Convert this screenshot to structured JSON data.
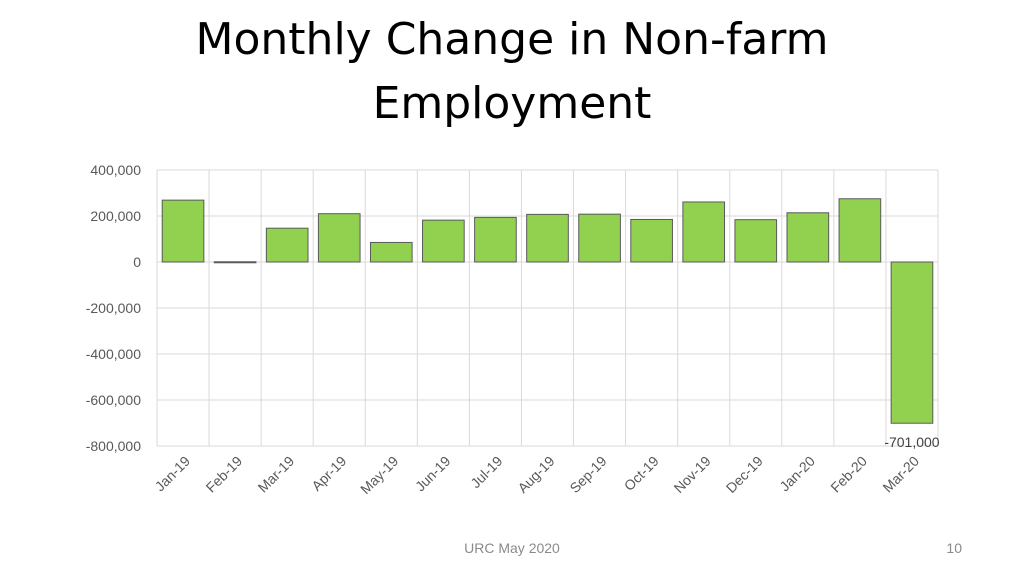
{
  "slide": {
    "title": "Monthly Change in Non-farm Employment",
    "footer_text": "URC May 2020",
    "page_number": "10"
  },
  "chart_data": {
    "type": "bar",
    "title": "",
    "xlabel": "",
    "ylabel": "",
    "categories": [
      "Jan-19",
      "Feb-19",
      "Mar-19",
      "Apr-19",
      "May-19",
      "Jun-19",
      "Jul-19",
      "Aug-19",
      "Sep-19",
      "Oct-19",
      "Nov-19",
      "Dec-19",
      "Jan-20",
      "Feb-20",
      "Mar-20"
    ],
    "values": [
      269000,
      1000,
      147000,
      210000,
      85000,
      182000,
      194000,
      207000,
      208000,
      185000,
      261000,
      184000,
      214000,
      275000,
      -701000
    ],
    "ylim": [
      -800000,
      400000
    ],
    "yticks": [
      400000,
      200000,
      0,
      -200000,
      -400000,
      -600000,
      -800000
    ],
    "ytick_labels": [
      "400,000",
      "200,000",
      "0",
      "-200,000",
      "-400,000",
      "-600,000",
      "-800,000"
    ],
    "data_labels": [
      {
        "index": 14,
        "text": "-701,000"
      }
    ],
    "grid": true,
    "bar_color": "#92d050",
    "bar_edge_color": "#5a5a5a",
    "grid_color": "#d9d9d9"
  }
}
